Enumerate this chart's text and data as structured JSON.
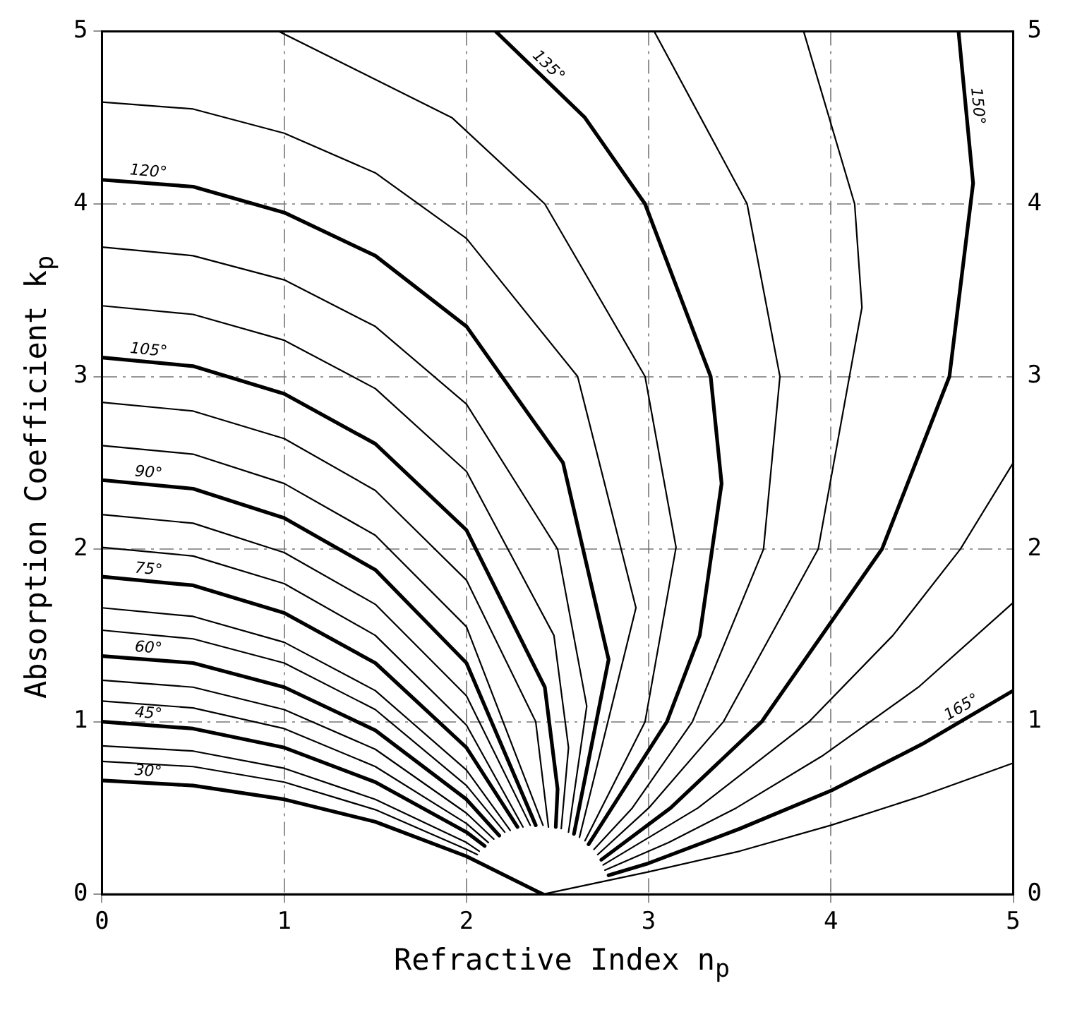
{
  "chart_data": {
    "type": "line",
    "xlabel": "Refractive Index n$_{p}$",
    "ylabel": "Absorption Coefficient k$_{p}$",
    "xlim": [
      0,
      5
    ],
    "xticks": [
      0,
      1,
      2,
      3,
      4,
      5
    ],
    "ylim": [
      0,
      5
    ],
    "yticks": [
      0,
      1,
      2,
      3,
      4,
      5
    ],
    "y2lim": [
      0,
      5
    ],
    "y2ticks": [
      0,
      1,
      2,
      3,
      4,
      5
    ],
    "grid": true,
    "marker": "none",
    "line_style": "solid",
    "series": [
      {
        "name": "30°",
        "color": "#000000",
        "x": [
          0,
          0.5,
          1,
          1.5,
          2,
          2.42
        ],
        "values": [
          0.66,
          0.63,
          0.55,
          0.42,
          0.22,
          0
        ]
      },
      {
        "color": "#000000",
        "x": [
          0,
          0.5,
          1,
          1.5,
          2,
          2.06
        ],
        "values": [
          0.77,
          0.74,
          0.65,
          0.49,
          0.26,
          0.23
        ]
      },
      {
        "color": "#000000",
        "x": [
          0,
          0.5,
          1,
          1.5,
          2,
          2.07
        ],
        "values": [
          0.86,
          0.83,
          0.73,
          0.55,
          0.3,
          0.25
        ]
      },
      {
        "name": "45°",
        "color": "#000000",
        "x": [
          0,
          0.5,
          1,
          1.5,
          2,
          2.1
        ],
        "values": [
          1.0,
          0.96,
          0.85,
          0.65,
          0.36,
          0.28
        ]
      },
      {
        "color": "#000000",
        "x": [
          0,
          0.5,
          1,
          1.5,
          2,
          2.12
        ],
        "values": [
          1.12,
          1.08,
          0.96,
          0.74,
          0.41,
          0.3
        ]
      },
      {
        "color": "#000000",
        "x": [
          0,
          0.5,
          1,
          1.5,
          2,
          2.15
        ],
        "values": [
          1.24,
          1.2,
          1.07,
          0.84,
          0.47,
          0.32
        ]
      },
      {
        "name": "60°",
        "color": "#000000",
        "x": [
          0,
          0.5,
          1,
          1.5,
          2,
          2.18
        ],
        "values": [
          1.38,
          1.34,
          1.2,
          0.95,
          0.55,
          0.34
        ]
      },
      {
        "color": "#000000",
        "x": [
          0,
          0.5,
          1,
          1.5,
          2,
          2.21
        ],
        "values": [
          1.53,
          1.48,
          1.34,
          1.07,
          0.63,
          0.36
        ]
      },
      {
        "color": "#000000",
        "x": [
          0,
          0.5,
          1,
          1.5,
          2,
          2.24
        ],
        "values": [
          1.66,
          1.61,
          1.46,
          1.18,
          0.72,
          0.37
        ]
      },
      {
        "name": "75°",
        "color": "#000000",
        "x": [
          0,
          0.5,
          1,
          1.5,
          2,
          2.28
        ],
        "values": [
          1.84,
          1.79,
          1.63,
          1.34,
          0.85,
          0.39
        ]
      },
      {
        "color": "#000000",
        "x": [
          0,
          0.5,
          1,
          1.5,
          2,
          2.31
        ],
        "values": [
          2.01,
          1.96,
          1.8,
          1.5,
          0.98,
          0.39
        ]
      },
      {
        "color": "#000000",
        "x": [
          0,
          0.5,
          1,
          1.5,
          2,
          2.35
        ],
        "values": [
          2.2,
          2.15,
          1.98,
          1.68,
          1.15,
          0.4
        ]
      },
      {
        "name": "90°",
        "color": "#000000",
        "x": [
          0,
          0.5,
          1,
          1.5,
          2,
          2.38
        ],
        "values": [
          2.4,
          2.35,
          2.18,
          1.88,
          1.34,
          0.4
        ]
      },
      {
        "color": "#000000",
        "x": [
          0,
          0.5,
          1,
          1.5,
          2,
          2.42
        ],
        "values": [
          2.6,
          2.55,
          2.38,
          2.08,
          1.55,
          0.4
        ]
      },
      {
        "color": "#000000",
        "x": [
          0,
          0.5,
          1,
          1.5,
          2,
          2.38,
          2.45
        ],
        "values": [
          2.85,
          2.8,
          2.64,
          2.34,
          1.82,
          1.0,
          0.39
        ]
      },
      {
        "name": "105°",
        "color": "#000000",
        "x": [
          0,
          0.5,
          1,
          1.5,
          2,
          2.43,
          2.5,
          2.49
        ],
        "values": [
          3.11,
          3.06,
          2.9,
          2.61,
          2.11,
          1.2,
          0.61,
          0.39
        ]
      },
      {
        "color": "#000000",
        "x": [
          0,
          0.5,
          1,
          1.5,
          2,
          2.48,
          2.56,
          2.52
        ],
        "values": [
          3.41,
          3.36,
          3.21,
          2.93,
          2.45,
          1.5,
          0.85,
          0.38
        ]
      },
      {
        "color": "#000000",
        "x": [
          0,
          0.5,
          1,
          1.5,
          2,
          2.5,
          2.66,
          2.56
        ],
        "values": [
          3.75,
          3.7,
          3.56,
          3.29,
          2.84,
          2.0,
          1.09,
          0.36
        ]
      },
      {
        "name": "120°",
        "color": "#000000",
        "x": [
          0,
          0.5,
          1,
          1.5,
          2,
          2.53,
          2.78,
          2.59
        ],
        "values": [
          4.14,
          4.1,
          3.95,
          3.7,
          3.29,
          2.5,
          1.36,
          0.35
        ]
      },
      {
        "color": "#000000",
        "x": [
          0,
          0.5,
          1,
          1.5,
          2,
          2.61,
          2.93,
          2.62
        ],
        "values": [
          4.59,
          4.55,
          4.41,
          4.18,
          3.8,
          3.0,
          1.66,
          0.33
        ]
      },
      {
        "color": "#000000",
        "x": [
          0.97,
          1.92,
          2.43,
          2.98,
          3.15,
          2.98,
          2.65
        ],
        "values": [
          5,
          4.5,
          4.0,
          3.0,
          2.01,
          1.0,
          0.31
        ]
      },
      {
        "name": "135°",
        "color": "#000000",
        "x": [
          2.16,
          2.65,
          2.98,
          3.34,
          3.4,
          3.28,
          3.1,
          2.67
        ],
        "values": [
          5,
          4.5,
          4.0,
          3.0,
          2.38,
          1.5,
          1.0,
          0.29
        ]
      },
      {
        "color": "#000000",
        "x": [
          3.03,
          3.54,
          3.72,
          3.63,
          3.24,
          2.91,
          2.7
        ],
        "values": [
          5,
          4.0,
          3.0,
          2.0,
          1.0,
          0.5,
          0.26
        ]
      },
      {
        "color": "#000000",
        "x": [
          3.85,
          4.13,
          4.17,
          3.93,
          3.41,
          3.0,
          2.72
        ],
        "values": [
          5,
          4.0,
          3.4,
          2.0,
          1.0,
          0.5,
          0.23
        ]
      },
      {
        "name": "150°",
        "color": "#000000",
        "x": [
          4.7,
          4.78,
          4.65,
          4.28,
          3.62,
          3.12,
          2.74
        ],
        "values": [
          5,
          4.12,
          3.0,
          2.0,
          1.0,
          0.5,
          0.2
        ]
      },
      {
        "color": "#000000",
        "x": [
          5,
          4.71,
          4.34,
          3.88,
          3.27,
          2.75
        ],
        "values": [
          2.5,
          2.0,
          1.5,
          1.0,
          0.5,
          0.17
        ]
      },
      {
        "color": "#000000",
        "x": [
          5,
          4.48,
          3.95,
          3.48,
          3.11,
          2.76
        ],
        "values": [
          1.69,
          1.2,
          0.8,
          0.5,
          0.3,
          0.14
        ]
      },
      {
        "name": "165°",
        "color": "#000000",
        "x": [
          5,
          4.5,
          4,
          3.5,
          3,
          2.78
        ],
        "values": [
          1.18,
          0.87,
          0.6,
          0.38,
          0.18,
          0.11
        ]
      },
      {
        "color": "#000000",
        "x": [
          5,
          4.5,
          4,
          3.5,
          3,
          2.42
        ],
        "values": [
          0.76,
          0.57,
          0.4,
          0.25,
          0.13,
          0
        ]
      }
    ]
  }
}
